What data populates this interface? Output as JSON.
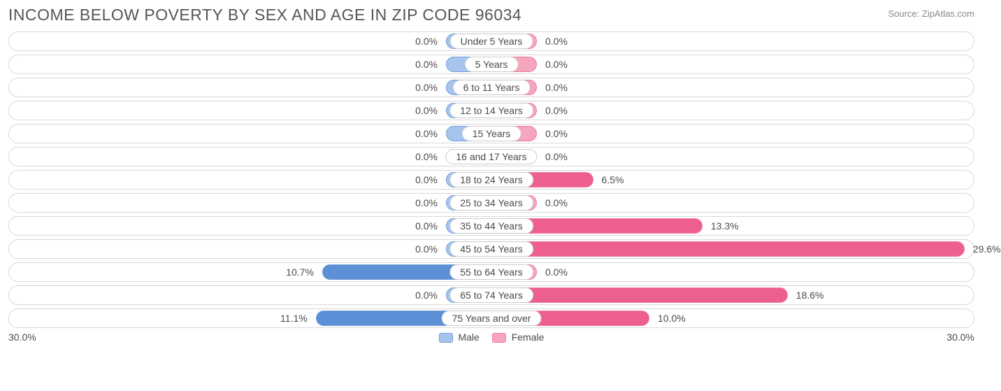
{
  "title": "INCOME BELOW POVERTY BY SEX AND AGE IN ZIP CODE 96034",
  "source": "Source: ZipAtlas.com",
  "axis_max": 30.0,
  "axis_label_left": "30.0%",
  "axis_label_right": "30.0%",
  "legend": {
    "male": "Male",
    "female": "Female"
  },
  "colors": {
    "male_fill": "#a7c4ec",
    "male_border": "#6f9edb",
    "male_deep": "#5b8fd6",
    "female_fill": "#f5a6bd",
    "female_border": "#ef7ba0",
    "female_deep": "#ec5f8e",
    "row_border": "#d8d8d8",
    "text": "#4a4a4a",
    "title_text": "#555555",
    "source_text": "#888888",
    "background": "#ffffff"
  },
  "min_bar_pct": 3.0,
  "rows": [
    {
      "category": "Under 5 Years",
      "male": 0.0,
      "female": 0.0
    },
    {
      "category": "5 Years",
      "male": 0.0,
      "female": 0.0
    },
    {
      "category": "6 to 11 Years",
      "male": 0.0,
      "female": 0.0
    },
    {
      "category": "12 to 14 Years",
      "male": 0.0,
      "female": 0.0
    },
    {
      "category": "15 Years",
      "male": 0.0,
      "female": 0.0
    },
    {
      "category": "16 and 17 Years",
      "male": 0.0,
      "female": 0.0
    },
    {
      "category": "18 to 24 Years",
      "male": 0.0,
      "female": 6.5
    },
    {
      "category": "25 to 34 Years",
      "male": 0.0,
      "female": 0.0
    },
    {
      "category": "35 to 44 Years",
      "male": 0.0,
      "female": 13.3
    },
    {
      "category": "45 to 54 Years",
      "male": 0.0,
      "female": 29.6
    },
    {
      "category": "55 to 64 Years",
      "male": 10.7,
      "female": 0.0
    },
    {
      "category": "65 to 74 Years",
      "male": 0.0,
      "female": 18.6
    },
    {
      "category": "75 Years and over",
      "male": 11.1,
      "female": 10.0
    }
  ]
}
